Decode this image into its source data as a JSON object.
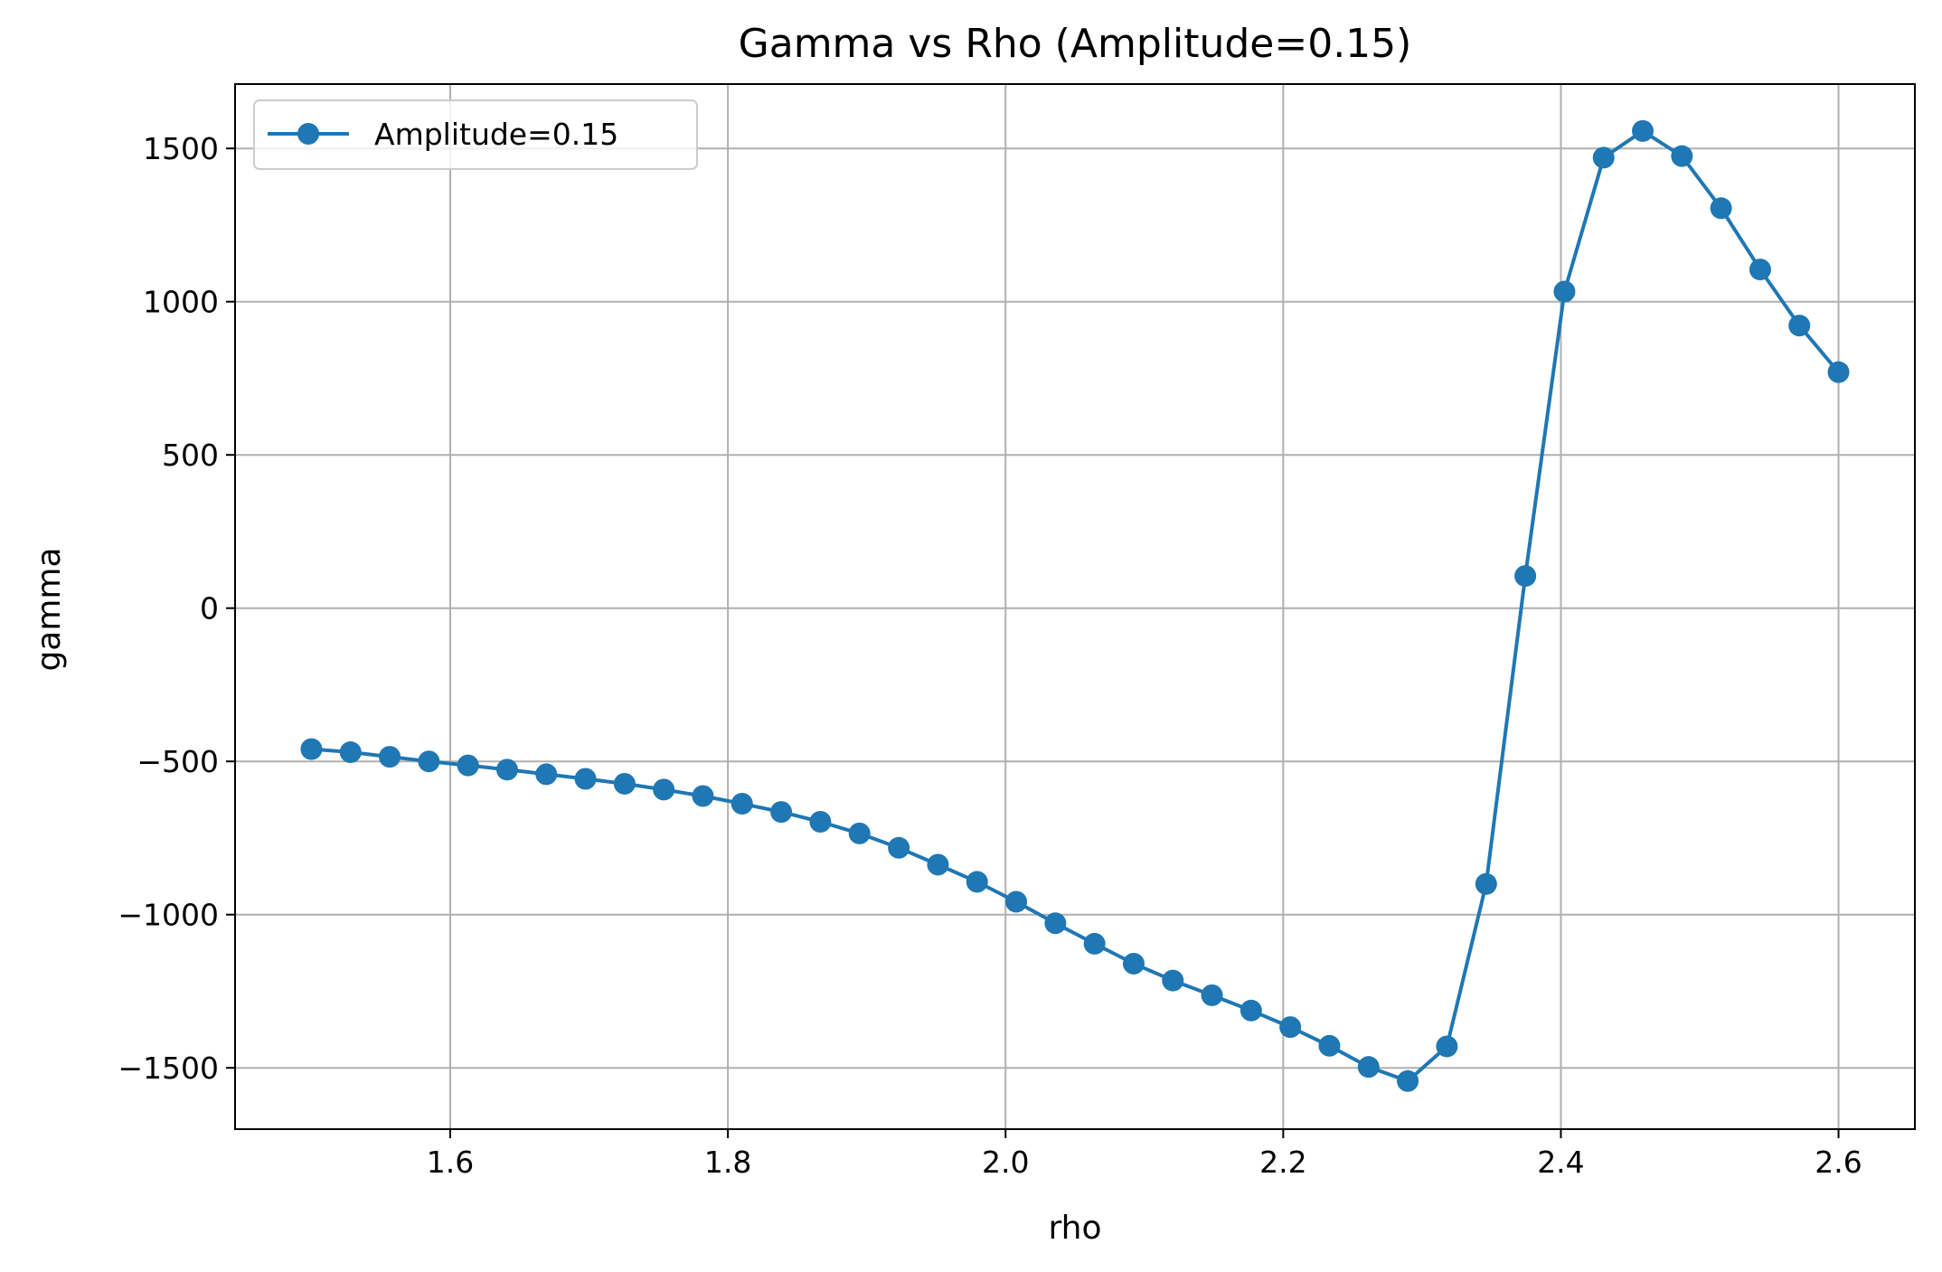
{
  "chart_data": {
    "type": "line",
    "title": "Gamma vs Rho (Amplitude=0.15)",
    "xlabel": "rho",
    "ylabel": "gamma",
    "xlim": [
      1.445,
      2.655
    ],
    "ylim": [
      -1700,
      1710
    ],
    "xticks": [
      1.6,
      1.8,
      2.0,
      2.2,
      2.4,
      2.6
    ],
    "xtick_labels": [
      "1.6",
      "1.8",
      "2.0",
      "2.2",
      "2.4",
      "2.6"
    ],
    "yticks": [
      -1500,
      -1000,
      -500,
      0,
      500,
      1000,
      1500
    ],
    "ytick_labels": [
      "−1500",
      "−1000",
      "−500",
      "0",
      "500",
      "1000",
      "1500"
    ],
    "grid": true,
    "legend_position": "top-left",
    "series": [
      {
        "name": "Amplitude=0.15",
        "color": "#1f77b4",
        "marker": "circle",
        "x": [
          1.5,
          1.5282,
          1.5564,
          1.5846,
          1.6128,
          1.641,
          1.6692,
          1.6974,
          1.7256,
          1.7538,
          1.782,
          1.8102,
          1.8384,
          1.8666,
          1.8948,
          1.9231,
          1.9513,
          1.9795,
          2.0077,
          2.0359,
          2.0641,
          2.0923,
          2.1205,
          2.1487,
          2.1769,
          2.2051,
          2.2333,
          2.2615,
          2.2897,
          2.3179,
          2.3462,
          2.3744,
          2.4026,
          2.4308,
          2.459,
          2.4872,
          2.5154,
          2.5436,
          2.5718,
          2.6
        ],
        "y": [
          -460,
          -470,
          -485,
          -500,
          -513,
          -527,
          -542,
          -557,
          -573,
          -592,
          -613,
          -638,
          -665,
          -697,
          -735,
          -782,
          -837,
          -893,
          -958,
          -1028,
          -1095,
          -1160,
          -1215,
          -1263,
          -1313,
          -1367,
          -1428,
          -1497,
          -1543,
          -1430,
          -900,
          105,
          1033,
          1470,
          1557,
          1475,
          1305,
          1105,
          922,
          770
        ]
      }
    ]
  }
}
